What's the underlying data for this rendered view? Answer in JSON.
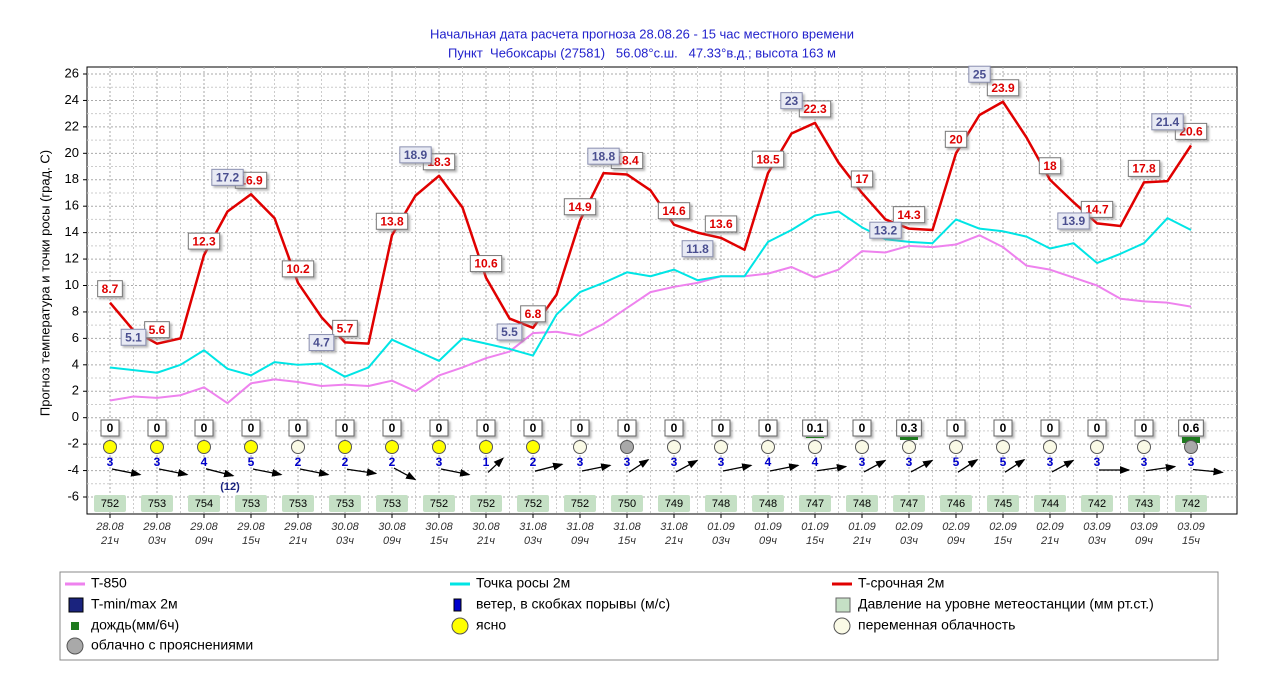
{
  "chart_data": {
    "type": "line",
    "title": "Начальная дата расчета прогноза 28.08.26 - 15 час местного времени",
    "subtitle": "Пункт  Чебоксары (27581)   56.08°с.ш.   47.33°в.д.; высота 163 м",
    "y_label": "Прогноз температура и точки росы (град. С)",
    "categories": [
      [
        "28.08",
        "21ч"
      ],
      null,
      [
        "29.08",
        "03ч"
      ],
      null,
      [
        "29.08",
        "09ч"
      ],
      null,
      [
        "29.08",
        "15ч"
      ],
      null,
      [
        "29.08",
        "21ч"
      ],
      null,
      [
        "30.08",
        "03ч"
      ],
      null,
      [
        "30.08",
        "09ч"
      ],
      null,
      [
        "30.08",
        "15ч"
      ],
      null,
      [
        "30.08",
        "21ч"
      ],
      null,
      [
        "31.08",
        "03ч"
      ],
      null,
      [
        "31.08",
        "09ч"
      ],
      null,
      [
        "31.08",
        "15ч"
      ],
      null,
      [
        "31.08",
        "21ч"
      ],
      null,
      [
        "01.09",
        "03ч"
      ],
      null,
      [
        "01.09",
        "09ч"
      ],
      null,
      [
        "01.09",
        "15ч"
      ],
      null,
      [
        "01.09",
        "21ч"
      ],
      null,
      [
        "02.09",
        "03ч"
      ],
      null,
      [
        "02.09",
        "09ч"
      ],
      null,
      [
        "02.09",
        "15ч"
      ],
      null,
      [
        "02.09",
        "21ч"
      ],
      null,
      [
        "03.09",
        "03ч"
      ],
      null,
      [
        "03.09",
        "09ч"
      ],
      null,
      [
        "03.09",
        "15ч"
      ]
    ],
    "ylim": [
      -6,
      26
    ],
    "yticks": [
      -6,
      -4,
      -2,
      0,
      2,
      4,
      6,
      8,
      10,
      12,
      14,
      16,
      18,
      20,
      22,
      24,
      26
    ],
    "grid": true,
    "series": [
      {
        "name": "T-850",
        "color": "#ee82ee",
        "values": [
          1.3,
          1.6,
          1.5,
          1.7,
          2.3,
          1.1,
          2.6,
          2.9,
          2.7,
          2.4,
          2.5,
          2.4,
          2.8,
          2.0,
          3.2,
          3.8,
          4.5,
          5.0,
          6.4,
          6.5,
          6.2,
          7.1,
          8.3,
          9.5,
          9.9,
          10.2,
          10.7,
          10.7,
          10.9,
          11.4,
          10.6,
          11.2,
          12.6,
          12.5,
          13.0,
          12.9,
          13.1,
          13.8,
          12.9,
          11.5,
          11.2,
          10.6,
          10.0,
          9.0,
          8.8,
          8.7,
          8.4
        ]
      },
      {
        "name": "Точка росы 2м",
        "color": "#00e5e5",
        "values": [
          3.8,
          3.6,
          3.4,
          4.0,
          5.1,
          3.7,
          3.2,
          4.2,
          4.0,
          4.1,
          3.1,
          3.8,
          5.9,
          5.1,
          4.3,
          6.0,
          5.6,
          5.2,
          4.7,
          7.8,
          9.5,
          10.2,
          11.0,
          10.7,
          11.2,
          10.4,
          10.7,
          10.7,
          13.3,
          14.2,
          15.3,
          15.6,
          14.4,
          13.5,
          13.3,
          13.2,
          15.0,
          14.3,
          14.1,
          13.7,
          12.8,
          13.2,
          11.7,
          12.4,
          13.2,
          15.1,
          14.2
        ]
      },
      {
        "name": "T-срочная 2м",
        "color": "#e00000",
        "values": [
          8.7,
          6.6,
          5.6,
          6.0,
          12.3,
          15.6,
          16.9,
          15.1,
          10.2,
          7.6,
          5.7,
          5.6,
          13.8,
          16.8,
          18.3,
          15.9,
          10.6,
          7.5,
          6.8,
          9.3,
          14.9,
          18.5,
          18.4,
          17.2,
          14.6,
          14.0,
          13.6,
          12.7,
          18.5,
          21.5,
          22.3,
          19.3,
          17,
          15.0,
          14.3,
          14.2,
          20,
          22.9,
          23.9,
          21.2,
          18,
          16.3,
          14.7,
          14.5,
          17.8,
          17.9,
          20.6
        ]
      },
      {
        "name": "T-min/max 2м",
        "color": "#1a237e",
        "values": [
          null,
          5.1,
          null,
          null,
          null,
          17.2,
          null,
          null,
          null,
          4.7,
          null,
          null,
          null,
          18.9,
          null,
          null,
          null,
          5.5,
          null,
          null,
          null,
          18.8,
          null,
          null,
          null,
          11.8,
          null,
          null,
          null,
          23,
          null,
          null,
          null,
          13.2,
          null,
          null,
          null,
          25,
          null,
          null,
          null,
          13.9,
          null,
          null,
          null,
          21.4,
          null
        ]
      }
    ],
    "precipitation": {
      "name": "дождь(мм/6ч)",
      "color": "#1e7a1e",
      "values": [
        0,
        0,
        0,
        0,
        0,
        0,
        0,
        0,
        0,
        0,
        0,
        0,
        0,
        0,
        0,
        0.1,
        0,
        0.3,
        0,
        0,
        0,
        0,
        0,
        0.6
      ]
    },
    "sky_types": [
      {
        "name": "ясно",
        "color": "#ffff00"
      },
      {
        "name": "переменная облачность",
        "color": "#fafae6"
      },
      {
        "name": "облачно с прояснениями",
        "color": "#a9a9a9"
      }
    ],
    "sky": [
      "ясно",
      "ясно",
      "ясно",
      "ясно",
      "переменная облачность",
      "ясно",
      "ясно",
      "ясно",
      "ясно",
      "ясно",
      "переменная облачность",
      "облачно с прояснениями",
      "переменная облачность",
      "переменная облачность",
      "переменная облачность",
      "переменная облачность",
      "переменная облачность",
      "переменная облачность",
      "переменная облачность",
      "переменная облачность",
      "переменная облачность",
      "переменная облачность",
      "переменная облачность",
      "облачно с прояснениями"
    ],
    "wind": {
      "name": "ветер, в скобках порывы (м/с)",
      "color": "#0000cc",
      "speed": [
        3,
        3,
        4,
        5,
        2,
        2,
        2,
        3,
        1,
        2,
        3,
        3,
        3,
        3,
        4,
        4,
        3,
        3,
        5,
        5,
        3,
        3,
        3,
        3
      ],
      "gusts": [
        null,
        null,
        12,
        null,
        null,
        null,
        null,
        null,
        null,
        null,
        null,
        null,
        null,
        null,
        null,
        null,
        null,
        null,
        null,
        null,
        null,
        null,
        null,
        null
      ],
      "direction": [
        20,
        20,
        25,
        20,
        20,
        15,
        45,
        20,
        -60,
        -25,
        -20,
        -50,
        -45,
        -20,
        -20,
        -15,
        -45,
        -45,
        -50,
        -50,
        -45,
        0,
        -15,
        10
      ]
    },
    "pressure": {
      "name": "Давление на уровне метеостанции (мм рт.ст.)",
      "color": "#c5e0c5",
      "values": [
        752,
        753,
        754,
        753,
        753,
        753,
        753,
        752,
        752,
        752,
        752,
        750,
        749,
        748,
        748,
        747,
        748,
        747,
        746,
        745,
        744,
        742,
        743,
        742
      ]
    }
  }
}
